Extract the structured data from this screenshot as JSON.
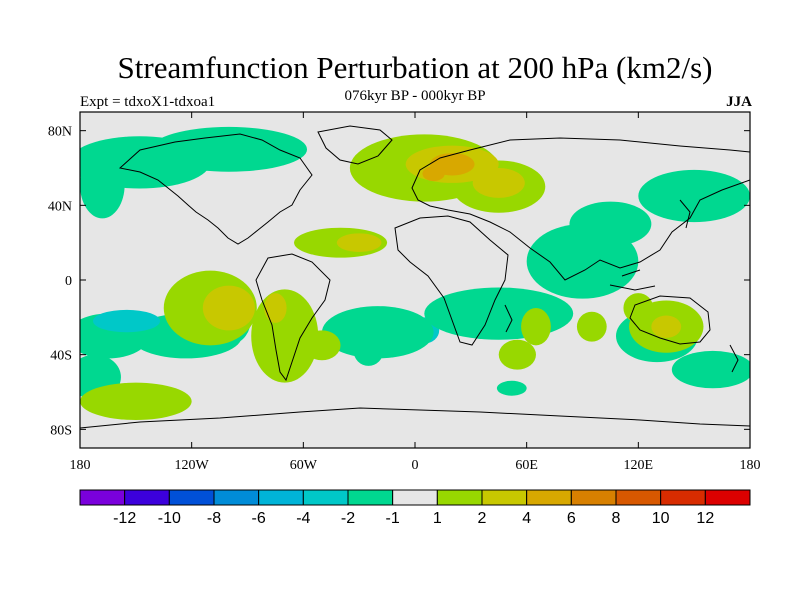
{
  "header": {
    "title": "Streamfunction Perturbation at 200 hPa (km2/s)",
    "subtitle": "076kyr BP - 000kyr BP",
    "left_label": "Expt = tdxoX1-tdxoa1",
    "right_label": "JJA"
  },
  "map": {
    "projection": "cylindrical-equidistant",
    "lon_range": [
      -180,
      180
    ],
    "lat_range": [
      -90,
      90
    ],
    "background_color": "#e6e6e6",
    "coastline_color": "#000000",
    "lon_ticks": [
      {
        "value": -180,
        "label": "180"
      },
      {
        "value": -120,
        "label": "120W"
      },
      {
        "value": -60,
        "label": "60W"
      },
      {
        "value": 0,
        "label": "0"
      },
      {
        "value": 60,
        "label": "60E"
      },
      {
        "value": 120,
        "label": "120E"
      },
      {
        "value": 180,
        "label": "180"
      }
    ],
    "lat_ticks": [
      {
        "value": 80,
        "label": "80N"
      },
      {
        "value": 40,
        "label": "40N"
      },
      {
        "value": 0,
        "label": "0"
      },
      {
        "value": -40,
        "label": "40S"
      },
      {
        "value": -80,
        "label": "80S"
      }
    ]
  },
  "contours": [
    {
      "level": "-2",
      "color": "#00d890",
      "centers": [
        [
          -148,
          63
        ],
        [
          -168,
          51
        ],
        [
          -165,
          -30
        ],
        [
          -172,
          -52
        ],
        [
          -98,
          -20
        ],
        [
          52,
          -58
        ],
        [
          -123,
          -30
        ],
        [
          -25,
          -38
        ]
      ],
      "radii": [
        [
          38,
          14
        ],
        [
          12,
          18
        ],
        [
          22,
          12
        ],
        [
          14,
          12
        ],
        [
          10,
          14
        ],
        [
          8,
          4
        ],
        [
          30,
          12
        ],
        [
          8,
          8
        ]
      ]
    },
    {
      "level": "-4",
      "color": "#00c8c8",
      "centers": [
        [
          -108,
          72
        ],
        [
          -155,
          -22
        ],
        [
          5,
          -27
        ],
        [
          45,
          -12
        ],
        [
          -115,
          72
        ]
      ],
      "radii": [
        [
          22,
          6
        ],
        [
          18,
          6
        ],
        [
          8,
          7
        ],
        [
          12,
          6
        ],
        [
          10,
          4
        ]
      ]
    },
    {
      "level": "-2",
      "color": "#00d890",
      "centers": [
        [
          -100,
          70
        ],
        [
          -20,
          -28
        ],
        [
          45,
          -18
        ],
        [
          90,
          10
        ],
        [
          150,
          45
        ],
        [
          130,
          -30
        ],
        [
          160,
          -48
        ],
        [
          105,
          30
        ]
      ],
      "radii": [
        [
          42,
          12
        ],
        [
          30,
          14
        ],
        [
          40,
          14
        ],
        [
          30,
          20
        ],
        [
          30,
          14
        ],
        [
          22,
          14
        ],
        [
          22,
          10
        ],
        [
          22,
          12
        ]
      ]
    },
    {
      "level": "1",
      "color": "#98d800",
      "centers": [
        [
          -150,
          -65
        ],
        [
          -110,
          -15
        ],
        [
          -70,
          -30
        ],
        [
          -40,
          20
        ],
        [
          5,
          60
        ],
        [
          45,
          50
        ],
        [
          55,
          -40
        ],
        [
          -50,
          -35
        ],
        [
          120,
          -15
        ],
        [
          135,
          -25
        ],
        [
          65,
          -25
        ],
        [
          95,
          -25
        ]
      ],
      "radii": [
        [
          30,
          10
        ],
        [
          25,
          20
        ],
        [
          18,
          25
        ],
        [
          25,
          8
        ],
        [
          40,
          18
        ],
        [
          25,
          14
        ],
        [
          10,
          8
        ],
        [
          10,
          8
        ],
        [
          8,
          8
        ],
        [
          20,
          14
        ],
        [
          8,
          10
        ],
        [
          8,
          8
        ]
      ]
    },
    {
      "level": "2",
      "color": "#c8c800",
      "centers": [
        [
          -100,
          -15
        ],
        [
          -30,
          20
        ],
        [
          20,
          62
        ],
        [
          45,
          52
        ],
        [
          -75,
          -15
        ],
        [
          135,
          -25
        ]
      ],
      "radii": [
        [
          14,
          12
        ],
        [
          12,
          5
        ],
        [
          25,
          10
        ],
        [
          14,
          8
        ],
        [
          6,
          8
        ],
        [
          8,
          6
        ]
      ]
    },
    {
      "level": "4",
      "color": "#d8a800",
      "centers": [
        [
          20,
          62
        ],
        [
          10,
          57
        ]
      ],
      "radii": [
        [
          12,
          6
        ],
        [
          6,
          4
        ]
      ]
    }
  ],
  "colorbar": {
    "segments": [
      {
        "color": "#7a00dc"
      },
      {
        "color": "#3c00dc"
      },
      {
        "color": "#0050d8"
      },
      {
        "color": "#008cd8"
      },
      {
        "color": "#00b4d8"
      },
      {
        "color": "#00c8c8"
      },
      {
        "color": "#00d890"
      },
      {
        "color": "#e6e6e6"
      },
      {
        "color": "#98d800"
      },
      {
        "color": "#c8c800"
      },
      {
        "color": "#d8a800"
      },
      {
        "color": "#d88000"
      },
      {
        "color": "#d85800"
      },
      {
        "color": "#d82c00"
      },
      {
        "color": "#dc0000"
      }
    ],
    "labels": [
      "-12",
      "-10",
      "-8",
      "-6",
      "-4",
      "-2",
      "-1",
      "1",
      "2",
      "4",
      "6",
      "8",
      "10",
      "12"
    ]
  }
}
